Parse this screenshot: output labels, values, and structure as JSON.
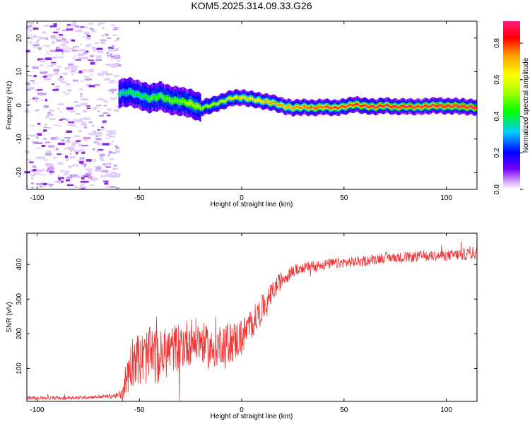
{
  "figure_title": "KOM5.2025.314.09.33.G26",
  "chart_data": [
    {
      "type": "heatmap",
      "title": "KOM5.2025.314.09.33.G26",
      "xlabel": "Height of straight line (km)",
      "ylabel": "Frequency (Hz)",
      "xlim": [
        -105,
        115
      ],
      "ylim": [
        -25,
        25
      ],
      "xticks": [
        -100,
        -50,
        0,
        50,
        100
      ],
      "yticks": [
        -20,
        -10,
        0,
        10,
        20
      ],
      "xtick_labels": [
        "-100",
        "-50",
        "0",
        "50",
        "100"
      ],
      "ytick_labels": [
        "-20",
        "-10",
        "0",
        "10",
        "20"
      ],
      "noise_region_x": [
        -105,
        -60
      ],
      "signal_trace": {
        "x": [
          -60,
          -55,
          -50,
          -45,
          -40,
          -35,
          -30,
          -25,
          -20,
          -15,
          -10,
          -5,
          0,
          5,
          10,
          15,
          20,
          25,
          30,
          35,
          40,
          45,
          50,
          55,
          60,
          65,
          70,
          75,
          80,
          85,
          90,
          95,
          100,
          105,
          110,
          115
        ],
        "freq": [
          3.5,
          4.0,
          3.0,
          2.0,
          2.8,
          1.5,
          1.2,
          0.5,
          -0.8,
          0.0,
          1.0,
          2.2,
          2.3,
          1.8,
          1.2,
          0.8,
          -0.2,
          -0.8,
          -0.5,
          -0.8,
          -0.4,
          -0.8,
          -0.4,
          0.3,
          -0.2,
          -0.5,
          0.0,
          -0.5,
          -0.3,
          -0.5,
          -0.3,
          0.0,
          -0.3,
          -0.2,
          -0.5,
          -0.6
        ],
        "amplitude": [
          0.35,
          0.4,
          0.4,
          0.45,
          0.45,
          0.5,
          0.5,
          0.55,
          0.55,
          0.55,
          0.6,
          0.62,
          0.65,
          0.66,
          0.7,
          0.72,
          0.72,
          0.75,
          0.78,
          0.8,
          0.8,
          0.82,
          0.82,
          0.83,
          0.85,
          0.85,
          0.86,
          0.86,
          0.87,
          0.87,
          0.88,
          0.88,
          0.88,
          0.89,
          0.89,
          0.9
        ]
      },
      "colorbar": {
        "label": "Normalized spectral amplitude",
        "range": [
          0,
          0.92
        ],
        "ticks": [
          0.0,
          0.2,
          0.4,
          0.6,
          0.8
        ],
        "tick_labels": [
          "0.0",
          "0.2",
          "0.4",
          "0.6",
          "0.8"
        ]
      }
    },
    {
      "type": "line",
      "xlabel": "Height of straight line (km)",
      "ylabel": "SNR (v/v)",
      "xlim": [
        -105,
        115
      ],
      "ylim": [
        5,
        490
      ],
      "xticks": [
        -100,
        -50,
        0,
        50,
        100
      ],
      "yticks": [
        100,
        200,
        300,
        400
      ],
      "xtick_labels": [
        "-100",
        "-50",
        "0",
        "50",
        "100"
      ],
      "ytick_labels": [
        "100",
        "200",
        "300",
        "400"
      ],
      "series": [
        {
          "name": "SNR",
          "color": "#ee3333",
          "x": [
            -105,
            -90,
            -80,
            -70,
            -65,
            -60,
            -58,
            -55,
            -52,
            -50,
            -45,
            -40,
            -35,
            -30,
            -25,
            -20,
            -15,
            -10,
            -5,
            0,
            5,
            10,
            15,
            20,
            25,
            30,
            40,
            50,
            60,
            70,
            80,
            90,
            100,
            110,
            115
          ],
          "y": [
            15,
            15,
            16,
            18,
            20,
            22,
            40,
            100,
            140,
            120,
            140,
            130,
            155,
            165,
            180,
            180,
            150,
            175,
            175,
            190,
            230,
            270,
            320,
            360,
            380,
            390,
            400,
            405,
            410,
            420,
            420,
            425,
            425,
            430,
            435
          ],
          "noise_amplitude": [
            5,
            5,
            5,
            5,
            6,
            8,
            40,
            70,
            80,
            80,
            80,
            80,
            70,
            70,
            70,
            60,
            60,
            60,
            60,
            55,
            45,
            40,
            30,
            25,
            18,
            15,
            15,
            15,
            15,
            15,
            15,
            15,
            15,
            18,
            20
          ]
        }
      ]
    }
  ]
}
